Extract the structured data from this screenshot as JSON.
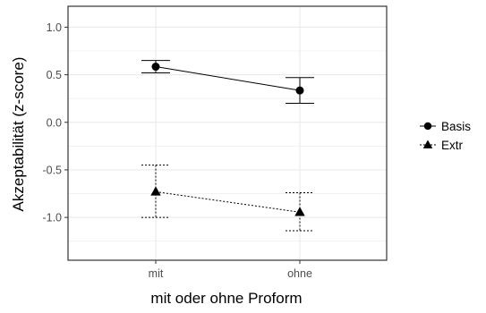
{
  "chart_data": {
    "type": "line",
    "categories": [
      "mit",
      "ohne"
    ],
    "xlabel": "mit oder ohne Proform",
    "ylabel": "Akzeptabilität (z-score)",
    "ylim": [
      -1.45,
      1.22
    ],
    "yticks": [
      1.0,
      0.5,
      0.0,
      -0.5,
      -1.0
    ],
    "ytick_labels": [
      "1.0",
      "0.5",
      "0.0",
      "-0.5",
      "-1.0"
    ],
    "grid": true,
    "legend_position": "right",
    "series": [
      {
        "name": "Basis",
        "marker": "circle",
        "linestyle": "solid",
        "values": [
          0.585,
          0.335
        ],
        "lower": [
          0.52,
          0.2
        ],
        "upper": [
          0.65,
          0.47
        ]
      },
      {
        "name": "Extr",
        "marker": "triangle",
        "linestyle": "dotted",
        "values": [
          -0.73,
          -0.945
        ],
        "lower": [
          -1.0,
          -1.14
        ],
        "upper": [
          -0.45,
          -0.74
        ]
      }
    ],
    "colors": {
      "ink": "#000000",
      "grid": "#ebebeb",
      "tick": "#4d4d4d",
      "panel_border": "#333333"
    }
  }
}
